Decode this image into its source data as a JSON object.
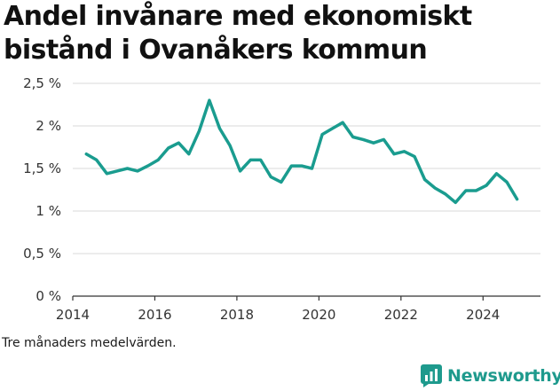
{
  "title": "Andel invånare med ekonomiskt bistånd i Ovanåkers kommun",
  "note": "Tre månaders medelvärden.",
  "brand": {
    "name": "Newsworthy",
    "icon": "bar-chart-logo-icon",
    "color": "#1e9a8d"
  },
  "chart_data": {
    "type": "line",
    "title": "Andel invånare med ekonomiskt bistånd i Ovanåkers kommun",
    "xlabel": "",
    "ylabel": "",
    "x_ticks": [
      "2014",
      "2016",
      "2018",
      "2020",
      "2022",
      "2024"
    ],
    "y_ticks": [
      "0 %",
      "0,5 %",
      "1 %",
      "1,5 %",
      "2 %",
      "2,5 %"
    ],
    "ylim": [
      0,
      2.5
    ],
    "xlim": [
      2014,
      2025.4
    ],
    "grid": "horizontal",
    "line_color": "#1a9c8f",
    "series": [
      {
        "x": [
          2014.33,
          2014.58,
          2014.83,
          2015.08,
          2015.33,
          2015.58,
          2015.83,
          2016.08,
          2016.33,
          2016.58,
          2016.83,
          2017.08,
          2017.33,
          2017.58,
          2017.83,
          2018.08,
          2018.33,
          2018.58,
          2018.83,
          2019.08,
          2019.33,
          2019.58,
          2019.83,
          2020.08,
          2020.33,
          2020.58,
          2020.83,
          2021.08,
          2021.33,
          2021.58,
          2021.83,
          2022.08,
          2022.33,
          2022.58,
          2022.83,
          2023.08,
          2023.33,
          2023.58,
          2023.83,
          2024.08,
          2024.33,
          2024.58,
          2024.83
        ],
        "values": [
          1.67,
          1.6,
          1.44,
          1.47,
          1.5,
          1.47,
          1.53,
          1.6,
          1.74,
          1.8,
          1.67,
          1.94,
          2.3,
          1.97,
          1.77,
          1.47,
          1.6,
          1.6,
          1.4,
          1.34,
          1.53,
          1.53,
          1.5,
          1.9,
          1.97,
          2.04,
          1.87,
          1.84,
          1.8,
          1.84,
          1.67,
          1.7,
          1.64,
          1.37,
          1.27,
          1.2,
          1.1,
          1.24,
          1.24,
          1.3,
          1.44,
          1.34,
          1.14
        ]
      }
    ]
  }
}
